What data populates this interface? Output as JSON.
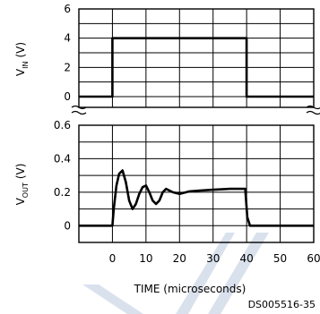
{
  "chart_data": {
    "type": "line",
    "x_axis": {
      "label": "TIME (microseconds)",
      "range": [
        -10,
        60
      ],
      "ticks": [
        0,
        10,
        20,
        30,
        40,
        50,
        60
      ]
    },
    "panels": [
      {
        "id": "vin",
        "ylabel_main": "V",
        "ylabel_sub": "IN",
        "ylabel_unit": "(V)",
        "ylim": [
          0,
          6
        ],
        "yticks": [
          0,
          2,
          4,
          6
        ],
        "series": [
          {
            "x": [
              -10,
              0,
              0,
              40,
              40,
              60
            ],
            "y": [
              0,
              0,
              4,
              4,
              0,
              0
            ]
          }
        ]
      },
      {
        "id": "vout",
        "ylabel_main": "V",
        "ylabel_sub": "OUT",
        "ylabel_unit": "(V)",
        "ylim": [
          -0.1,
          0.6
        ],
        "yticks": [
          0,
          0.2,
          0.4,
          0.6
        ],
        "series": [
          {
            "x": [
              -10,
              0,
              0.4,
              1.2,
              2,
              3,
              4,
              5,
              6,
              7,
              8,
              9,
              10,
              11,
              12,
              13,
              14,
              15,
              16,
              18,
              20,
              23,
              26,
              30,
              35,
              39.6,
              40.2,
              41,
              60
            ],
            "y": [
              0,
              0,
              0.1,
              0.24,
              0.31,
              0.33,
              0.26,
              0.15,
              0.1,
              0.13,
              0.19,
              0.23,
              0.24,
              0.2,
              0.15,
              0.13,
              0.15,
              0.2,
              0.22,
              0.2,
              0.19,
              0.205,
              0.21,
              0.215,
              0.22,
              0.22,
              0.05,
              0,
              0
            ]
          }
        ]
      }
    ]
  },
  "document_id": "DS005516-35"
}
